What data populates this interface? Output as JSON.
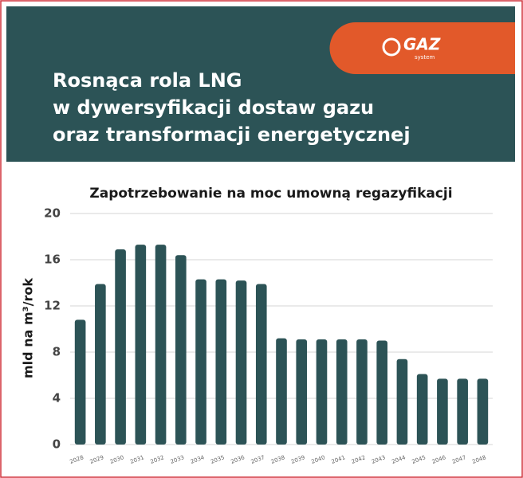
{
  "header": {
    "title_lines": [
      "Rosnąca rola LNG",
      "w dywersyfikacji dostaw gazu",
      "oraz transformacji energetycznej"
    ]
  },
  "logo": {
    "brand": "GAZ",
    "sub": "system"
  },
  "chart_data": {
    "type": "bar",
    "title": "Zapotrzebowanie na moc umowną regazyfikacji",
    "y_label": "mld na m³/rok",
    "categories": [
      "2028",
      "2029",
      "2030",
      "2031",
      "2032",
      "2033",
      "2034",
      "2035",
      "2036",
      "2037",
      "2038",
      "2039",
      "2040",
      "2041",
      "2042",
      "2043",
      "2044",
      "2045",
      "2046",
      "2047",
      "2048"
    ],
    "values": [
      10.8,
      13.9,
      16.9,
      17.3,
      17.3,
      16.4,
      14.3,
      14.3,
      14.2,
      13.9,
      9.2,
      9.1,
      9.1,
      9.1,
      9.1,
      9.0,
      7.4,
      6.1,
      5.7,
      5.7,
      5.7
    ],
    "color": "#2c5356",
    "ylim": [
      0,
      20
    ],
    "yticks": [
      0,
      4,
      8,
      12,
      16,
      20
    ],
    "grid": true
  }
}
